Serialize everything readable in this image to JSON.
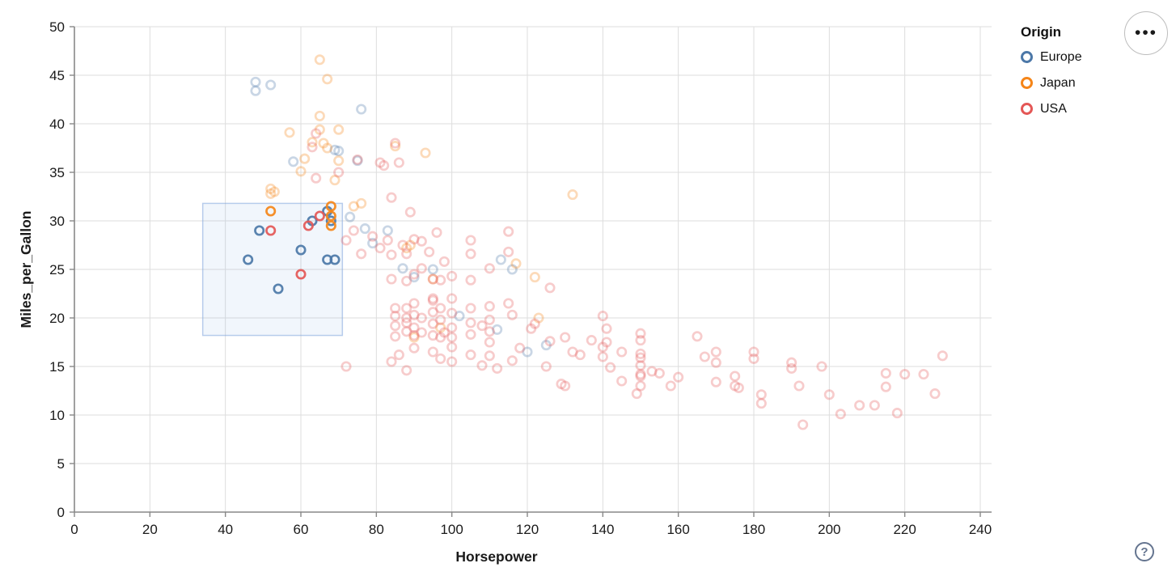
{
  "legend": {
    "title": "Origin",
    "items": [
      {
        "label": "Europe",
        "key": "E",
        "color": "#4c78a8"
      },
      {
        "label": "Japan",
        "key": "J",
        "color": "#f58518"
      },
      {
        "label": "USA",
        "key": "U",
        "color": "#e45756"
      }
    ]
  },
  "controls": {
    "menu_icon": "•••",
    "help_icon": "?"
  },
  "chart_data": {
    "type": "scatter",
    "title": "",
    "xlabel": "Horsepower",
    "ylabel": "Miles_per_Gallon",
    "xlim": [
      0,
      240
    ],
    "ylim": [
      0,
      50
    ],
    "x_ticks": [
      0,
      20,
      40,
      60,
      80,
      100,
      120,
      140,
      160,
      180,
      200,
      220,
      240
    ],
    "y_ticks": [
      0,
      5,
      10,
      15,
      20,
      25,
      30,
      35,
      40,
      45,
      50
    ],
    "grid": true,
    "legend_position": "top-right",
    "point_style": "hollow-circle",
    "brush_selection": {
      "x": [
        34,
        71
      ],
      "y": [
        18.2,
        31.8
      ]
    },
    "unselected_opacity": 0.3,
    "selected_opacity": 0.92,
    "series": [
      {
        "name": "Europe",
        "key": "E",
        "color": "#4c78a8",
        "points": [
          [
            46,
            26
          ],
          [
            49,
            29
          ],
          [
            54,
            23
          ],
          [
            60,
            27
          ],
          [
            63,
            30
          ],
          [
            67,
            31
          ],
          [
            68,
            30
          ],
          [
            67,
            26
          ],
          [
            69,
            26
          ],
          [
            48,
            44.3
          ],
          [
            48,
            43.4
          ],
          [
            52,
            44
          ],
          [
            76,
            41.5
          ],
          [
            70,
            37.2
          ],
          [
            58,
            36.1
          ],
          [
            75,
            36.2
          ],
          [
            69,
            37.3
          ],
          [
            73,
            30.4
          ],
          [
            77,
            29.2
          ],
          [
            83,
            29
          ],
          [
            79,
            27.7
          ],
          [
            113,
            26
          ],
          [
            116,
            25
          ],
          [
            95,
            25
          ],
          [
            87,
            25.1
          ],
          [
            90,
            24.2
          ],
          [
            102,
            20.2
          ],
          [
            112,
            18.8
          ],
          [
            120,
            16.5
          ],
          [
            125,
            17.2
          ]
        ]
      },
      {
        "name": "Japan",
        "key": "J",
        "color": "#f58518",
        "points": [
          [
            52,
            31
          ],
          [
            68,
            31.5
          ],
          [
            68,
            30.5
          ],
          [
            68,
            29.5
          ],
          [
            65,
            46.6
          ],
          [
            67,
            44.6
          ],
          [
            65,
            40.8
          ],
          [
            57,
            39.1
          ],
          [
            65,
            39.4
          ],
          [
            70,
            39.4
          ],
          [
            63,
            38.1
          ],
          [
            66,
            38
          ],
          [
            67,
            37.5
          ],
          [
            61,
            36.4
          ],
          [
            60,
            35.1
          ],
          [
            70,
            36.2
          ],
          [
            69,
            34.2
          ],
          [
            52,
            33.3
          ],
          [
            53,
            33
          ],
          [
            52,
            32.8
          ],
          [
            74,
            31.5
          ],
          [
            76,
            31.8
          ],
          [
            93,
            37
          ],
          [
            85,
            37.7
          ],
          [
            88,
            27.2
          ],
          [
            89,
            27.5
          ],
          [
            95,
            24
          ],
          [
            97,
            19
          ],
          [
            90,
            18
          ],
          [
            117,
            25.6
          ],
          [
            122,
            24.2
          ],
          [
            123,
            20
          ],
          [
            132,
            32.7
          ]
        ]
      },
      {
        "name": "USA",
        "key": "U",
        "color": "#e45756",
        "points": [
          [
            52,
            29
          ],
          [
            60,
            24.5
          ],
          [
            62,
            29.5
          ],
          [
            65,
            30.5
          ],
          [
            64,
            39
          ],
          [
            63,
            37.6
          ],
          [
            85,
            38
          ],
          [
            81,
            36
          ],
          [
            82,
            35.7
          ],
          [
            86,
            36
          ],
          [
            75,
            36.3
          ],
          [
            70,
            35
          ],
          [
            64,
            34.4
          ],
          [
            84,
            32.4
          ],
          [
            89,
            30.9
          ],
          [
            72,
            28
          ],
          [
            74,
            29
          ],
          [
            76,
            26.6
          ],
          [
            79,
            28.4
          ],
          [
            81,
            27.2
          ],
          [
            83,
            28
          ],
          [
            84,
            26.5
          ],
          [
            87,
            27.5
          ],
          [
            88,
            26.6
          ],
          [
            90,
            28.1
          ],
          [
            92,
            27.9
          ],
          [
            94,
            26.8
          ],
          [
            105,
            28
          ],
          [
            115,
            28.9
          ],
          [
            105,
            26.6
          ],
          [
            115,
            26.8
          ],
          [
            110,
            25.1
          ],
          [
            96,
            28.8
          ],
          [
            84,
            24
          ],
          [
            88,
            23.8
          ],
          [
            90,
            24.5
          ],
          [
            92,
            25.1
          ],
          [
            95,
            24
          ],
          [
            97,
            23.9
          ],
          [
            100,
            24.3
          ],
          [
            105,
            23.9
          ],
          [
            126,
            23.1
          ],
          [
            95,
            22
          ],
          [
            98,
            25.8
          ],
          [
            85,
            21
          ],
          [
            85,
            20.2
          ],
          [
            85,
            19.2
          ],
          [
            85,
            18.1
          ],
          [
            88,
            21
          ],
          [
            88,
            20
          ],
          [
            88,
            19.5
          ],
          [
            88,
            18.6
          ],
          [
            90,
            21.5
          ],
          [
            90,
            20.3
          ],
          [
            90,
            19
          ],
          [
            90,
            18.2
          ],
          [
            92,
            20
          ],
          [
            92,
            18.5
          ],
          [
            95,
            21.8
          ],
          [
            95,
            20.6
          ],
          [
            95,
            19.4
          ],
          [
            95,
            18.2
          ],
          [
            97,
            21
          ],
          [
            97,
            19.8
          ],
          [
            98,
            18.5
          ],
          [
            100,
            22
          ],
          [
            100,
            20.5
          ],
          [
            100,
            19
          ],
          [
            100,
            18
          ],
          [
            105,
            21
          ],
          [
            105,
            19.5
          ],
          [
            105,
            18.3
          ],
          [
            108,
            19.2
          ],
          [
            110,
            21.2
          ],
          [
            110,
            19.8
          ],
          [
            110,
            18.6
          ],
          [
            115,
            21.5
          ],
          [
            116,
            20.3
          ],
          [
            122,
            19.4
          ],
          [
            121,
            18.9
          ],
          [
            126,
            17.6
          ],
          [
            97,
            18
          ],
          [
            140,
            20.2
          ],
          [
            86,
            16.2
          ],
          [
            88,
            14.6
          ],
          [
            84,
            15.5
          ],
          [
            90,
            16.9
          ],
          [
            95,
            16.5
          ],
          [
            97,
            15.8
          ],
          [
            100,
            17
          ],
          [
            100,
            15.5
          ],
          [
            105,
            16.2
          ],
          [
            108,
            15.1
          ],
          [
            110,
            17.5
          ],
          [
            110,
            16.1
          ],
          [
            112,
            14.8
          ],
          [
            116,
            15.6
          ],
          [
            118,
            16.9
          ],
          [
            72,
            15
          ],
          [
            125,
            15
          ],
          [
            129,
            13.2
          ],
          [
            130,
            18
          ],
          [
            130,
            13
          ],
          [
            132,
            16.5
          ],
          [
            134,
            16.2
          ],
          [
            137,
            17.7
          ],
          [
            140,
            17
          ],
          [
            140,
            16
          ],
          [
            142,
            14.9
          ],
          [
            141,
            18.9
          ],
          [
            141,
            17.5
          ],
          [
            145,
            13.5
          ],
          [
            145,
            16.5
          ],
          [
            150,
            18.4
          ],
          [
            150,
            17.7
          ],
          [
            150,
            16.3
          ],
          [
            150,
            15.9
          ],
          [
            150,
            15.1
          ],
          [
            150,
            14.2
          ],
          [
            150,
            14
          ],
          [
            150,
            13
          ],
          [
            149,
            12.2
          ],
          [
            153,
            14.5
          ],
          [
            155,
            14.3
          ],
          [
            158,
            13
          ],
          [
            160,
            13.9
          ],
          [
            165,
            18.1
          ],
          [
            167,
            16
          ],
          [
            170,
            16.5
          ],
          [
            170,
            15.4
          ],
          [
            170,
            13.4
          ],
          [
            175,
            14
          ],
          [
            175,
            13
          ],
          [
            176,
            12.8
          ],
          [
            180,
            16.5
          ],
          [
            180,
            15.8
          ],
          [
            182,
            12.1
          ],
          [
            182,
            11.2
          ],
          [
            190,
            15.4
          ],
          [
            190,
            14.8
          ],
          [
            192,
            13
          ],
          [
            193,
            9
          ],
          [
            198,
            15
          ],
          [
            200,
            12.1
          ],
          [
            203,
            10.1
          ],
          [
            208,
            11
          ],
          [
            212,
            11
          ],
          [
            215,
            14.3
          ],
          [
            215,
            12.9
          ],
          [
            218,
            10.2
          ],
          [
            220,
            14.2
          ],
          [
            225,
            14.2
          ],
          [
            228,
            12.2
          ],
          [
            230,
            16.1
          ]
        ]
      }
    ],
    "style": {
      "grid_color": "#dddddd",
      "axis_color": "#888888",
      "label_color": "#1a1a1a",
      "brush_fill": "rgba(100,150,220,0.09)",
      "brush_stroke": "rgba(130,165,220,0.55)"
    }
  }
}
